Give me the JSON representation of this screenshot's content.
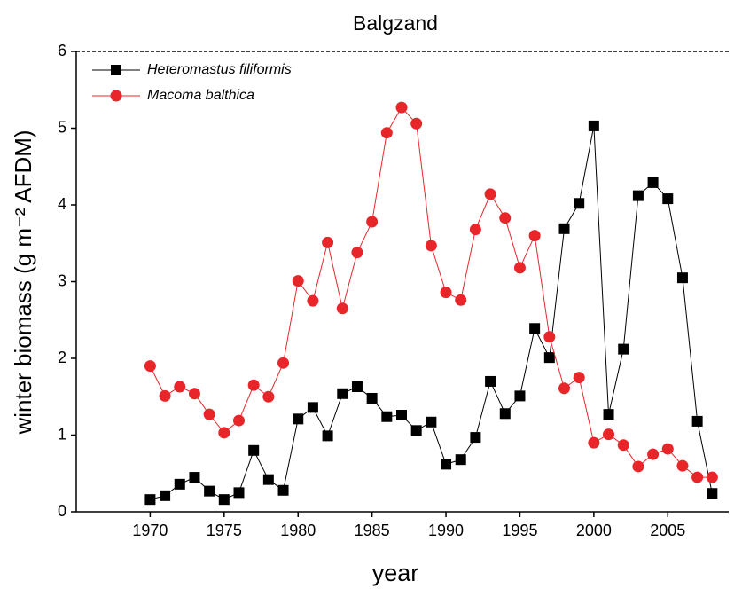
{
  "chart_data": {
    "type": "line",
    "title": "Balgzand",
    "xlabel": "year",
    "ylabel": "winter biomass (g m⁻² AFDM)",
    "x": [
      1970,
      1971,
      1972,
      1973,
      1974,
      1975,
      1976,
      1977,
      1978,
      1979,
      1980,
      1981,
      1982,
      1983,
      1984,
      1985,
      1986,
      1987,
      1988,
      1989,
      1990,
      1991,
      1992,
      1993,
      1994,
      1995,
      1996,
      1997,
      1998,
      1999,
      2000,
      2001,
      2002,
      2003,
      2004,
      2005,
      2006,
      2007,
      2008
    ],
    "series": [
      {
        "name": "Heteromastus filiformis",
        "color": "#000000",
        "marker": "square",
        "values": [
          0.16,
          0.21,
          0.36,
          0.45,
          0.27,
          0.16,
          0.25,
          0.8,
          0.42,
          0.28,
          1.21,
          1.36,
          0.99,
          1.54,
          1.63,
          1.48,
          1.24,
          1.26,
          1.06,
          1.17,
          0.62,
          0.68,
          0.97,
          1.7,
          1.28,
          1.51,
          2.39,
          2.01,
          3.69,
          4.02,
          5.03,
          1.27,
          2.12,
          4.12,
          4.29,
          4.08,
          3.05,
          1.18,
          0.24
        ]
      },
      {
        "name": "Macoma balthica",
        "color": "#e8262a",
        "marker": "circle",
        "values": [
          1.9,
          1.51,
          1.63,
          1.54,
          1.27,
          1.03,
          1.19,
          1.65,
          1.5,
          1.94,
          3.01,
          2.75,
          3.51,
          2.65,
          3.38,
          3.78,
          4.94,
          5.27,
          5.06,
          3.47,
          2.86,
          2.76,
          3.68,
          4.14,
          3.83,
          3.18,
          3.6,
          2.28,
          1.61,
          1.75,
          0.9,
          1.01,
          0.87,
          0.59,
          0.75,
          0.82,
          0.6,
          0.45,
          0.45
        ]
      }
    ],
    "xlim": [
      1965,
      2009
    ],
    "xticks": [
      1970,
      1975,
      1980,
      1985,
      1990,
      1995,
      2000,
      2005
    ],
    "ylim": [
      0,
      6
    ],
    "yticks": [
      0,
      1,
      2,
      3,
      4,
      5,
      6
    ],
    "legend": "upper left"
  }
}
